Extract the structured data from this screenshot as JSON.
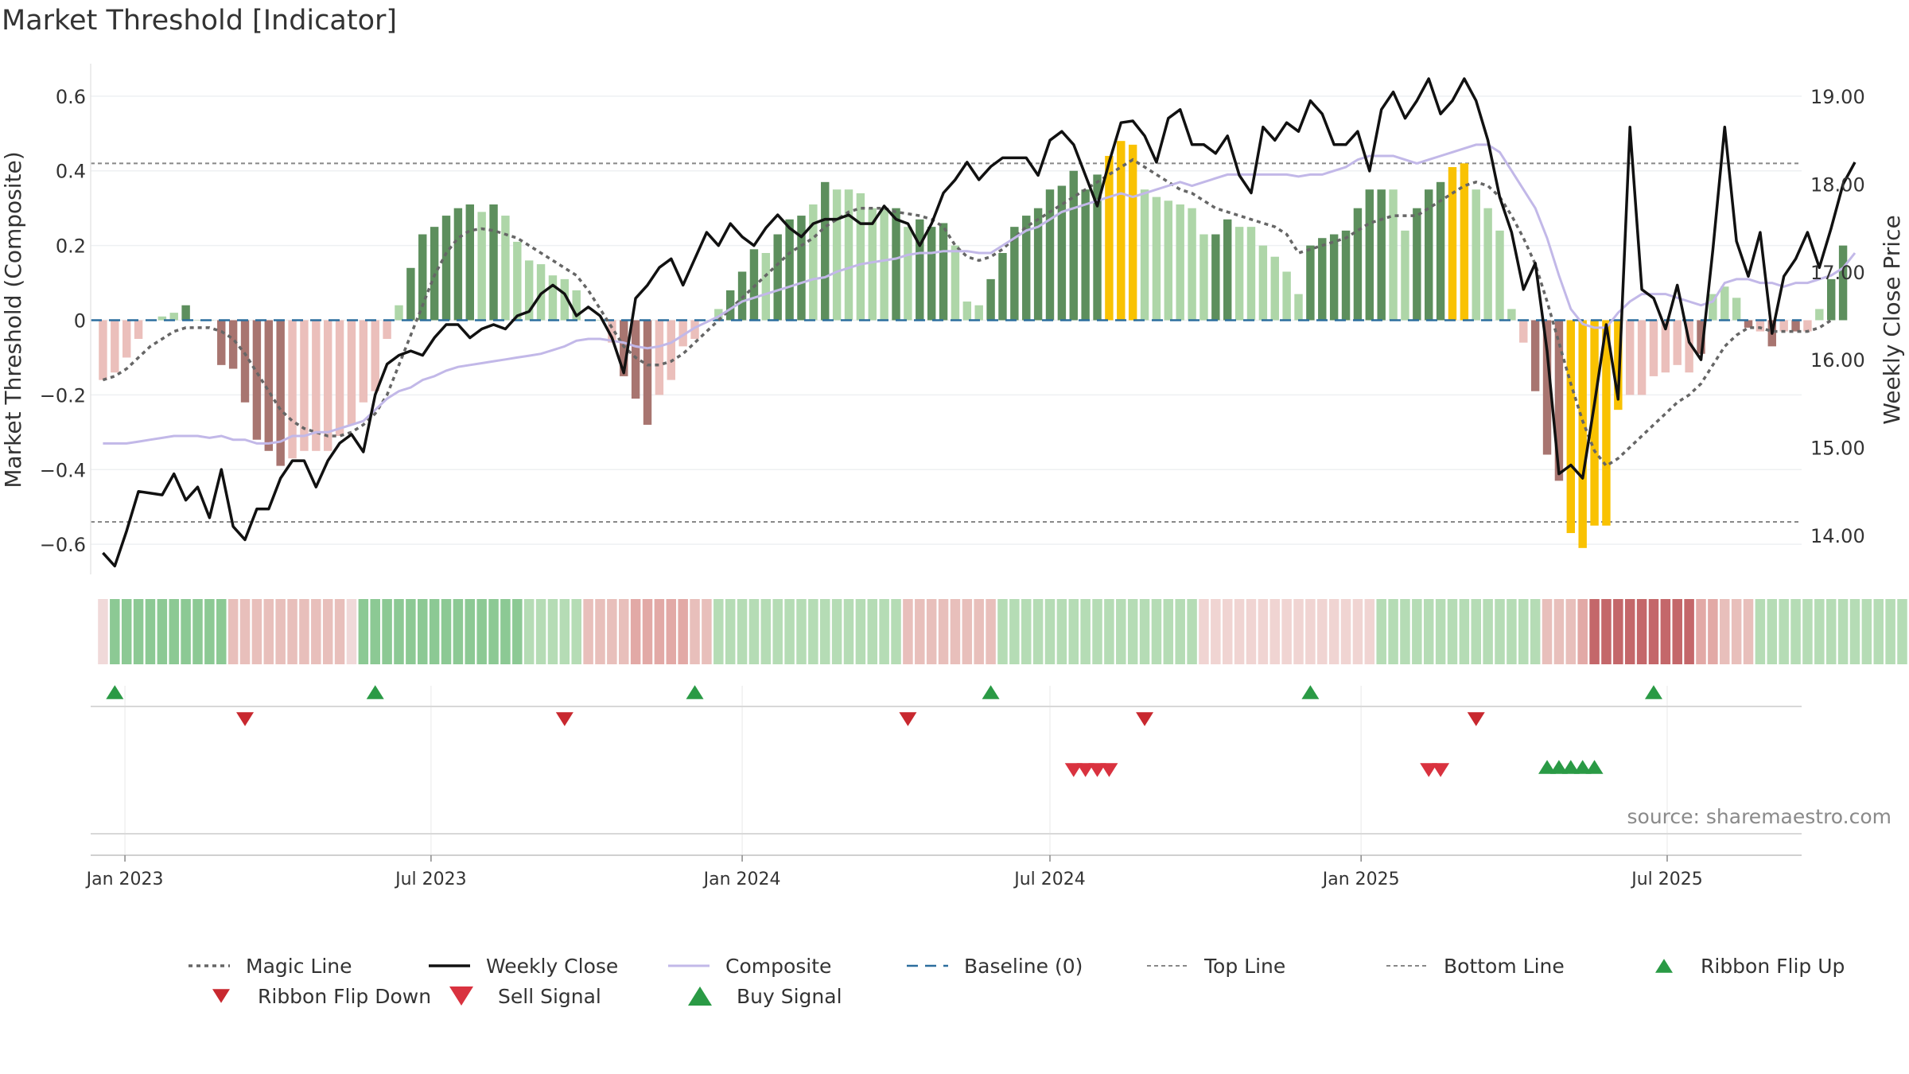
{
  "title": "Market Threshold [Indicator]",
  "source_text": "source: sharemaestro.com",
  "colors": {
    "pos_dark": "#5d8f5d",
    "pos_light": "#aed6a8",
    "neg_dark": "#a87570",
    "neg_light": "#ebbfbb",
    "extreme": "#f9c202",
    "close": "#111111",
    "composite": "#c2b8e8",
    "magic": "#666666",
    "baseline": "#2c6e9e",
    "threshold": "#888888",
    "buy": "#2a9a45",
    "sell": "#d9323f"
  },
  "legend": [
    {
      "label": "Magic Line",
      "icon": "dotted-line-icon"
    },
    {
      "label": "Weekly Close",
      "icon": "solid-line-icon"
    },
    {
      "label": "Composite",
      "icon": "lavender-line-icon"
    },
    {
      "label": "Baseline (0)",
      "icon": "dashed-line-icon"
    },
    {
      "label": "Top Line",
      "icon": "dashed-gray-line-icon"
    },
    {
      "label": "Bottom Line",
      "icon": "dashed-gray-line-icon"
    },
    {
      "label": "Ribbon Flip Up",
      "icon": "triangle-up-icon"
    },
    {
      "label": "Ribbon Flip Down",
      "icon": "triangle-down-icon"
    },
    {
      "label": "Sell Signal",
      "icon": "triangle-down-icon"
    },
    {
      "label": "Buy Signal",
      "icon": "triangle-up-icon"
    }
  ],
  "chart_data": {
    "type": "bar",
    "title": "Market Threshold [Indicator]",
    "ylabel": "Market Threshold (Composite)",
    "y2label": "Weekly Close Price",
    "ylim": [
      -0.67,
      0.67
    ],
    "y2lim": [
      13.6,
      19.3
    ],
    "yticks": [
      "0.6",
      "0.4",
      "0.2",
      "0",
      "−0.2",
      "−0.4",
      "−0.6"
    ],
    "y2ticks": [
      "19.00",
      "18.00",
      "17.00",
      "16.00",
      "15.00",
      "14.00"
    ],
    "xticks": [
      "Jan 2023",
      "Jul 2023",
      "Jan 2024",
      "Jul 2024",
      "Jan 2025",
      "Jul 2025"
    ],
    "top_line": 0.42,
    "bottom_line": -0.54,
    "start_date": "2022-12-19",
    "weeks": 144,
    "bar_values": [
      -0.16,
      -0.14,
      -0.1,
      -0.05,
      0,
      0.01,
      0.02,
      0.04,
      0,
      0,
      -0.12,
      -0.13,
      -0.22,
      -0.32,
      -0.35,
      -0.39,
      -0.37,
      -0.35,
      -0.35,
      -0.35,
      -0.31,
      -0.28,
      -0.22,
      -0.19,
      -0.05,
      0.04,
      0.14,
      0.23,
      0.25,
      0.28,
      0.3,
      0.31,
      0.29,
      0.31,
      0.28,
      0.21,
      0.16,
      0.15,
      0.12,
      0.11,
      0.08,
      0,
      0,
      -0.06,
      -0.15,
      -0.21,
      -0.28,
      -0.2,
      -0.16,
      -0.07,
      -0.05,
      0,
      0.03,
      0.08,
      0.13,
      0.19,
      0.18,
      0.23,
      0.27,
      0.28,
      0.31,
      0.37,
      0.35,
      0.35,
      0.34,
      0.3,
      0.3,
      0.3,
      0.25,
      0.27,
      0.25,
      0.26,
      0.2,
      0.05,
      0.04,
      0.11,
      0.18,
      0.25,
      0.28,
      0.3,
      0.35,
      0.36,
      0.4,
      0.35,
      0.39,
      0.44,
      0.48,
      0.47,
      0.35,
      0.33,
      0.32,
      0.31,
      0.3,
      0.23,
      0.23,
      0.27,
      0.25,
      0.25,
      0.2,
      0.17,
      0.13,
      0.07,
      0.2,
      0.22,
      0.23,
      0.24,
      0.3,
      0.35,
      0.35,
      0.35,
      0.24,
      0.3,
      0.35,
      0.37,
      0.41,
      0.42,
      0.35,
      0.3,
      0.24,
      0.03,
      -0.06,
      -0.19,
      -0.36,
      -0.43,
      -0.57,
      -0.61,
      -0.55,
      -0.55,
      -0.24,
      -0.2,
      -0.2,
      -0.15,
      -0.14,
      -0.12,
      -0.14,
      -0.09,
      0.07,
      0.09,
      0.06,
      -0.02,
      -0.03,
      -0.07,
      -0.03,
      -0.03,
      -0.03,
      0.03,
      0.11,
      0.2
    ],
    "bar_shades": [
      "L",
      "L",
      "L",
      "L",
      "L",
      "L",
      "L",
      "D",
      "L",
      "L",
      "D",
      "D",
      "D",
      "D",
      "D",
      "D",
      "L",
      "L",
      "L",
      "L",
      "L",
      "L",
      "L",
      "L",
      "L",
      "L",
      "D",
      "D",
      "D",
      "D",
      "D",
      "D",
      "L",
      "D",
      "L",
      "L",
      "L",
      "L",
      "L",
      "L",
      "L",
      "L",
      "L",
      "L",
      "D",
      "D",
      "D",
      "L",
      "L",
      "L",
      "L",
      "L",
      "L",
      "D",
      "D",
      "D",
      "L",
      "D",
      "D",
      "D",
      "L",
      "D",
      "L",
      "L",
      "L",
      "L",
      "L",
      "D",
      "L",
      "D",
      "D",
      "D",
      "L",
      "L",
      "L",
      "D",
      "D",
      "D",
      "D",
      "D",
      "D",
      "D",
      "D",
      "D",
      "D",
      "X",
      "X",
      "X",
      "L",
      "L",
      "L",
      "L",
      "L",
      "L",
      "D",
      "D",
      "L",
      "L",
      "L",
      "L",
      "L",
      "L",
      "D",
      "D",
      "D",
      "D",
      "D",
      "D",
      "D",
      "L",
      "L",
      "D",
      "D",
      "D",
      "X",
      "X",
      "L",
      "L",
      "L",
      "L",
      "L",
      "D",
      "D",
      "D",
      "X",
      "X",
      "X",
      "X",
      "X",
      "L",
      "L",
      "L",
      "L",
      "L",
      "L",
      "D",
      "L",
      "L",
      "L",
      "D",
      "L",
      "D",
      "L",
      "D",
      "L",
      "L",
      "D",
      "D"
    ],
    "close": [
      13.8,
      13.65,
      14.05,
      14.5,
      14.48,
      14.46,
      14.7,
      14.4,
      14.55,
      14.2,
      14.75,
      14.1,
      13.95,
      14.3,
      14.3,
      14.65,
      14.85,
      14.85,
      14.55,
      14.85,
      15.05,
      15.15,
      14.95,
      15.6,
      15.95,
      16.05,
      16.1,
      16.05,
      16.25,
      16.4,
      16.4,
      16.25,
      16.35,
      16.4,
      16.35,
      16.5,
      16.55,
      16.75,
      16.85,
      16.75,
      16.5,
      16.6,
      16.5,
      16.25,
      15.85,
      16.7,
      16.85,
      17.05,
      17.15,
      16.85,
      17.15,
      17.45,
      17.3,
      17.55,
      17.4,
      17.3,
      17.5,
      17.65,
      17.5,
      17.4,
      17.55,
      17.6,
      17.6,
      17.65,
      17.55,
      17.55,
      17.75,
      17.6,
      17.55,
      17.3,
      17.55,
      17.9,
      18.05,
      18.25,
      18.05,
      18.2,
      18.3,
      18.3,
      18.3,
      18.1,
      18.5,
      18.6,
      18.45,
      18.1,
      17.75,
      18.25,
      18.7,
      18.72,
      18.55,
      18.25,
      18.75,
      18.85,
      18.45,
      18.45,
      18.35,
      18.55,
      18.1,
      17.9,
      18.65,
      18.5,
      18.7,
      18.6,
      18.95,
      18.8,
      18.45,
      18.45,
      18.6,
      18.15,
      18.85,
      19.05,
      18.75,
      18.95,
      19.2,
      18.8,
      18.95,
      19.2,
      18.95,
      18.5,
      17.85,
      17.45,
      16.8,
      17.1,
      16.1,
      14.7,
      14.8,
      14.65,
      15.5,
      16.4,
      15.55,
      18.65,
      16.8,
      16.7,
      16.35,
      16.85,
      16.2,
      16.0,
      17.25,
      18.65,
      17.35,
      16.95,
      17.45,
      16.3,
      16.95,
      17.15,
      17.45,
      17.05,
      17.5,
      18.0,
      18.25
    ],
    "composite": [
      -0.33,
      -0.33,
      -0.33,
      -0.325,
      -0.32,
      -0.315,
      -0.31,
      -0.31,
      -0.31,
      -0.315,
      -0.31,
      -0.32,
      -0.32,
      -0.33,
      -0.33,
      -0.325,
      -0.31,
      -0.31,
      -0.3,
      -0.3,
      -0.29,
      -0.28,
      -0.27,
      -0.24,
      -0.21,
      -0.19,
      -0.18,
      -0.16,
      -0.15,
      -0.135,
      -0.125,
      -0.12,
      -0.115,
      -0.11,
      -0.105,
      -0.1,
      -0.095,
      -0.09,
      -0.08,
      -0.07,
      -0.055,
      -0.05,
      -0.05,
      -0.055,
      -0.06,
      -0.07,
      -0.075,
      -0.07,
      -0.06,
      -0.04,
      -0.02,
      -0.005,
      0.01,
      0.03,
      0.05,
      0.06,
      0.07,
      0.08,
      0.09,
      0.1,
      0.11,
      0.115,
      0.13,
      0.14,
      0.15,
      0.155,
      0.16,
      0.165,
      0.175,
      0.18,
      0.18,
      0.185,
      0.185,
      0.185,
      0.18,
      0.18,
      0.2,
      0.22,
      0.24,
      0.25,
      0.27,
      0.29,
      0.3,
      0.31,
      0.32,
      0.33,
      0.34,
      0.33,
      0.34,
      0.35,
      0.36,
      0.37,
      0.36,
      0.37,
      0.38,
      0.39,
      0.39,
      0.39,
      0.39,
      0.39,
      0.39,
      0.385,
      0.39,
      0.39,
      0.4,
      0.41,
      0.43,
      0.44,
      0.44,
      0.44,
      0.43,
      0.42,
      0.43,
      0.44,
      0.45,
      0.46,
      0.47,
      0.47,
      0.45,
      0.4,
      0.35,
      0.3,
      0.22,
      0.12,
      0.03,
      -0.01,
      -0.02,
      -0.02,
      0.02,
      0.05,
      0.07,
      0.07,
      0.07,
      0.06,
      0.05,
      0.04,
      0.05,
      0.1,
      0.11,
      0.11,
      0.1,
      0.1,
      0.09,
      0.1,
      0.1,
      0.11,
      0.12,
      0.14,
      0.18
    ],
    "magic": [
      -0.16,
      -0.15,
      -0.13,
      -0.1,
      -0.07,
      -0.05,
      -0.03,
      -0.02,
      -0.02,
      -0.02,
      -0.03,
      -0.05,
      -0.09,
      -0.14,
      -0.19,
      -0.24,
      -0.27,
      -0.29,
      -0.3,
      -0.31,
      -0.31,
      -0.3,
      -0.28,
      -0.25,
      -0.2,
      -0.12,
      -0.04,
      0.04,
      0.12,
      0.18,
      0.22,
      0.24,
      0.245,
      0.24,
      0.23,
      0.22,
      0.2,
      0.18,
      0.16,
      0.14,
      0.12,
      0.08,
      0.03,
      -0.02,
      -0.07,
      -0.1,
      -0.12,
      -0.12,
      -0.11,
      -0.09,
      -0.06,
      -0.03,
      0.0,
      0.03,
      0.06,
      0.09,
      0.12,
      0.15,
      0.18,
      0.2,
      0.22,
      0.25,
      0.27,
      0.29,
      0.3,
      0.3,
      0.3,
      0.29,
      0.285,
      0.28,
      0.27,
      0.25,
      0.2,
      0.17,
      0.16,
      0.17,
      0.19,
      0.22,
      0.25,
      0.27,
      0.29,
      0.31,
      0.33,
      0.35,
      0.37,
      0.39,
      0.41,
      0.43,
      0.41,
      0.39,
      0.37,
      0.35,
      0.34,
      0.32,
      0.3,
      0.29,
      0.28,
      0.27,
      0.26,
      0.25,
      0.23,
      0.18,
      0.19,
      0.2,
      0.21,
      0.22,
      0.24,
      0.26,
      0.27,
      0.28,
      0.28,
      0.28,
      0.3,
      0.32,
      0.34,
      0.36,
      0.37,
      0.36,
      0.33,
      0.28,
      0.22,
      0.15,
      0.05,
      -0.06,
      -0.17,
      -0.27,
      -0.35,
      -0.39,
      -0.37,
      -0.34,
      -0.31,
      -0.28,
      -0.25,
      -0.22,
      -0.2,
      -0.17,
      -0.12,
      -0.07,
      -0.04,
      -0.02,
      -0.02,
      -0.03,
      -0.03,
      -0.03,
      -0.03,
      -0.02,
      0.0
    ],
    "ribbon": [
      0,
      3,
      3,
      3,
      3,
      3,
      3,
      3,
      3,
      3,
      3,
      -2,
      -2,
      -2,
      -2,
      -2,
      -2,
      -2,
      -2,
      -2,
      -2,
      0,
      3,
      3,
      3,
      3,
      3,
      3,
      3,
      3,
      3,
      3,
      3,
      3,
      3,
      3,
      2,
      2,
      2,
      2,
      2,
      -2,
      -2,
      -2,
      -2,
      -3,
      -3,
      -3,
      -3,
      -3,
      -2,
      -2,
      2,
      2,
      2,
      2,
      2,
      2,
      2,
      2,
      2,
      2,
      2,
      2,
      2,
      2,
      2,
      2,
      -2,
      -2,
      -2,
      -2,
      -2,
      -2,
      -2,
      -2,
      2,
      2,
      2,
      2,
      2,
      2,
      2,
      2,
      2,
      2,
      2,
      2,
      2,
      2,
      2,
      2,
      2,
      -1,
      -1,
      -1,
      -1,
      -1,
      -1,
      -1,
      -1,
      -1,
      -1,
      -1,
      -1,
      -1,
      -1,
      -1,
      2,
      2,
      2,
      2,
      2,
      2,
      2,
      2,
      2,
      2,
      2,
      2,
      2,
      2,
      -2,
      -2,
      -2,
      -3,
      -4,
      -4,
      -4,
      -4,
      -4,
      -4,
      -4,
      -4,
      -4,
      -3,
      -3,
      -2,
      -2,
      -2,
      2,
      2,
      2,
      2,
      2,
      2,
      2,
      2,
      2,
      2,
      2,
      2,
      2,
      2
    ],
    "ribbon_flip_up": [
      1,
      23,
      50,
      75,
      102,
      131
    ],
    "ribbon_flip_down": [
      12,
      39,
      68,
      88,
      116
    ],
    "sell_signals": [
      82,
      83,
      84,
      85,
      112,
      113
    ],
    "buy_signals": [
      122,
      123,
      124,
      125,
      126
    ]
  }
}
